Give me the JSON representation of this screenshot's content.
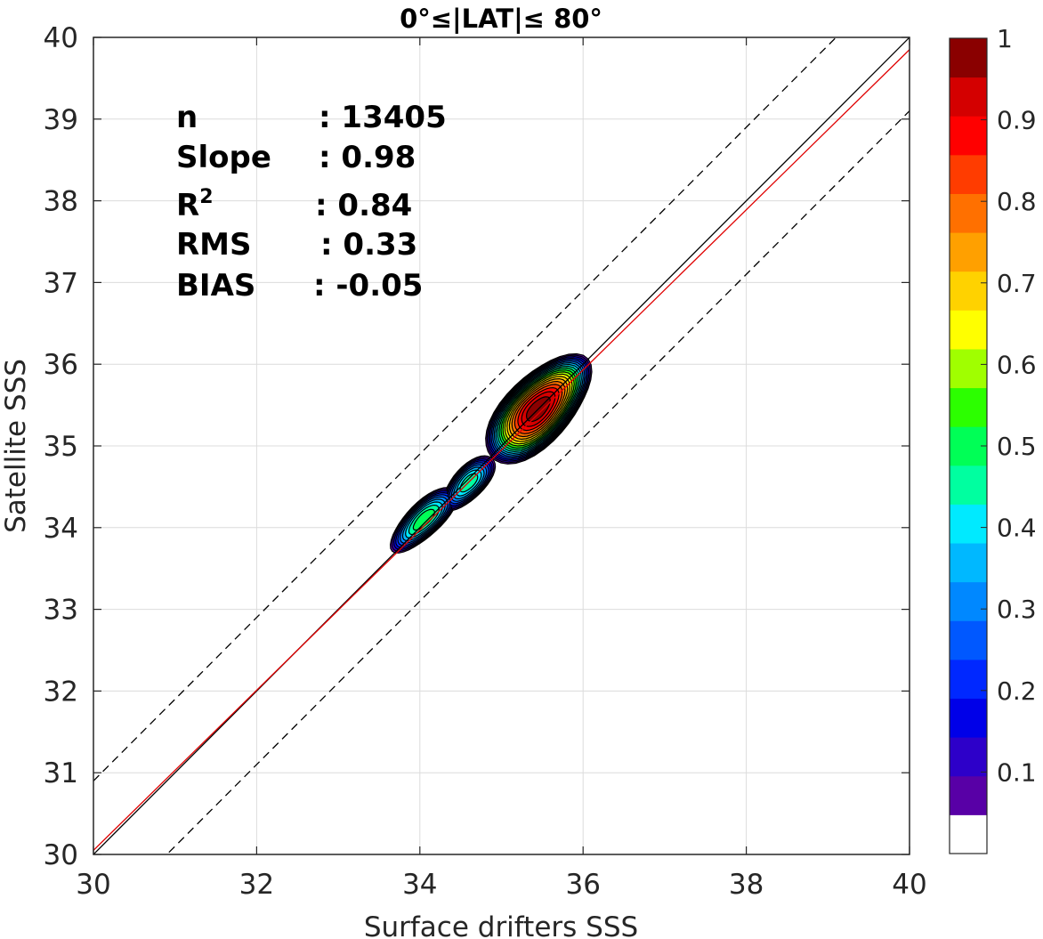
{
  "chart_data": {
    "type": "contour-density-scatter",
    "title": "0°≤|LAT|≤ 80°",
    "xlabel": "Surface drifters SSS",
    "ylabel": "Satellite SSS",
    "xlim": [
      30,
      40
    ],
    "ylim": [
      30,
      40
    ],
    "xticks": [
      "30",
      "32",
      "34",
      "36",
      "38",
      "40"
    ],
    "yticks": [
      "30",
      "31",
      "32",
      "33",
      "34",
      "35",
      "36",
      "37",
      "38",
      "39",
      "40"
    ],
    "grid": true,
    "stats": [
      {
        "label": "n",
        "value": ": 13405"
      },
      {
        "label": "Slope",
        "value": ": 0.98"
      },
      {
        "label": "R",
        "sup": "2",
        "value": ": 0.84"
      },
      {
        "label": "RMS",
        "value": ": 0.33"
      },
      {
        "label": "BIAS",
        "value": ": -0.05"
      }
    ],
    "lines": {
      "one_to_one": {
        "slope": 1,
        "intercept": 0,
        "color": "#000000"
      },
      "regression": {
        "slope": 0.98,
        "intercept": 0.65,
        "color": "#e00000"
      },
      "upper_bound": {
        "slope": 1,
        "intercept": 0.9,
        "style": "dashed"
      },
      "lower_bound": {
        "slope": 1,
        "intercept": -0.9,
        "style": "dashed"
      }
    },
    "density_peaks": [
      {
        "x": 35.45,
        "y": 35.45,
        "level": 1.0
      },
      {
        "x": 34.05,
        "y": 34.1,
        "level": 0.5
      },
      {
        "x": 34.6,
        "y": 34.55,
        "level": 0.45
      }
    ],
    "colorbar": {
      "range": [
        0,
        1
      ],
      "tick_values": [
        1,
        0.9,
        0.8,
        0.7,
        0.6,
        0.5,
        0.4,
        0.3,
        0.2,
        0.1
      ],
      "tick_labels": [
        "1",
        "0.9",
        "0.8",
        "0.7",
        "0.6",
        "0.5",
        "0.4",
        "0.3",
        "0.2",
        "0.1"
      ],
      "colors": [
        "#ffffff",
        "#5800a6",
        "#2d00c9",
        "#0000e8",
        "#0028ff",
        "#0058ff",
        "#0088ff",
        "#00b8ff",
        "#00eaff",
        "#00ffa0",
        "#00ff56",
        "#2cff00",
        "#a0ff00",
        "#ffff00",
        "#ffd200",
        "#ffa000",
        "#ff7000",
        "#ff3c00",
        "#ff0000",
        "#d40000",
        "#8a0000"
      ]
    }
  }
}
